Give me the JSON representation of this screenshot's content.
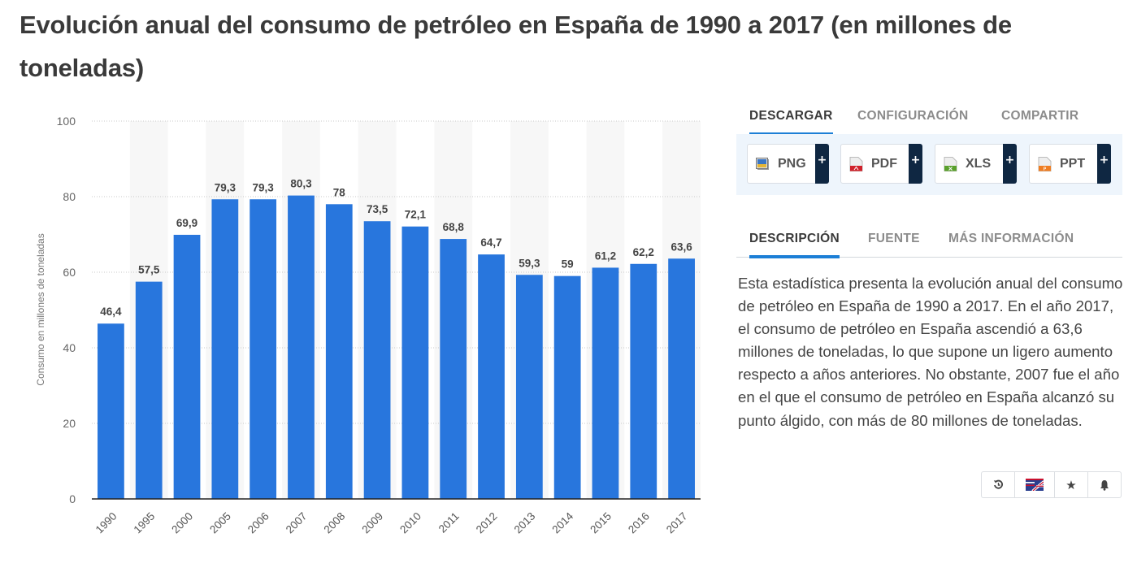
{
  "page": {
    "title": "Evolución anual del consumo de petróleo en España de 1990 a 2017 (en millones de toneladas)"
  },
  "download_tabs": [
    {
      "label": "DESCARGAR",
      "active": true
    },
    {
      "label": "CONFIGURACIÓN",
      "active": false
    },
    {
      "label": "COMPARTIR",
      "active": false
    }
  ],
  "download_buttons": [
    {
      "label": "PNG",
      "icon": "image-file-icon",
      "plus": "+",
      "color": "#3a76c4"
    },
    {
      "label": "PDF",
      "icon": "pdf-file-icon",
      "plus": "+",
      "color": "#d0212a"
    },
    {
      "label": "XLS",
      "icon": "excel-file-icon",
      "plus": "+",
      "color": "#5aa02c"
    },
    {
      "label": "PPT",
      "icon": "powerpoint-file-icon",
      "plus": "+",
      "color": "#ef7d22"
    }
  ],
  "info_tabs": [
    {
      "label": "DESCRIPCIÓN",
      "active": true
    },
    {
      "label": "FUENTE",
      "active": false
    },
    {
      "label": "MÁS INFORMACIÓN",
      "active": false
    }
  ],
  "description": "Esta estadística presenta la evolución anual del consumo de petróleo en España de 1990 a 2017. En el año 2017, el consumo de petróleo en España ascendió a 63,6 millones de toneladas, lo que supone un ligero aumento respecto a años anteriores. No obstante, 2007 fue el año en el que el consumo de petróleo en España alcanzó su punto álgido, con más de 80 millones de toneladas.",
  "toolbar": [
    {
      "name": "history-button",
      "icon": "history-icon",
      "glyph": "⟲"
    },
    {
      "name": "language-button",
      "icon": "flag-us-uk-icon",
      "glyph": ""
    },
    {
      "name": "favorite-button",
      "icon": "star-icon",
      "glyph": "★"
    },
    {
      "name": "notification-button",
      "icon": "bell-icon",
      "glyph": "🔔"
    }
  ],
  "colors": {
    "bar": "#2876dd",
    "active_tab_underline": "#1c7fd6",
    "download_panel_bg": "#eef5fc",
    "plus_bg": "#0f2742"
  },
  "chart_data": {
    "type": "bar",
    "title": "",
    "xlabel": "",
    "ylabel": "Consumo en millones de toneladas",
    "categories": [
      "1990",
      "1995",
      "2000",
      "2005",
      "2006",
      "2007",
      "2008",
      "2009",
      "2010",
      "2011",
      "2012",
      "2013",
      "2014",
      "2015",
      "2016",
      "2017"
    ],
    "values": [
      46.4,
      57.5,
      69.9,
      79.3,
      79.3,
      80.3,
      78,
      73.5,
      72.1,
      68.8,
      64.7,
      59.3,
      59,
      61.2,
      62.2,
      63.6
    ],
    "value_labels": [
      "46,4",
      "57,5",
      "69,9",
      "79,3",
      "79,3",
      "80,3",
      "78",
      "73,5",
      "72,1",
      "68,8",
      "64,7",
      "59,3",
      "59",
      "61,2",
      "62,2",
      "63,6"
    ],
    "ylim": [
      0,
      100
    ],
    "yticks": [
      0,
      20,
      40,
      60,
      80,
      100
    ],
    "grid": true,
    "legend": "none"
  }
}
